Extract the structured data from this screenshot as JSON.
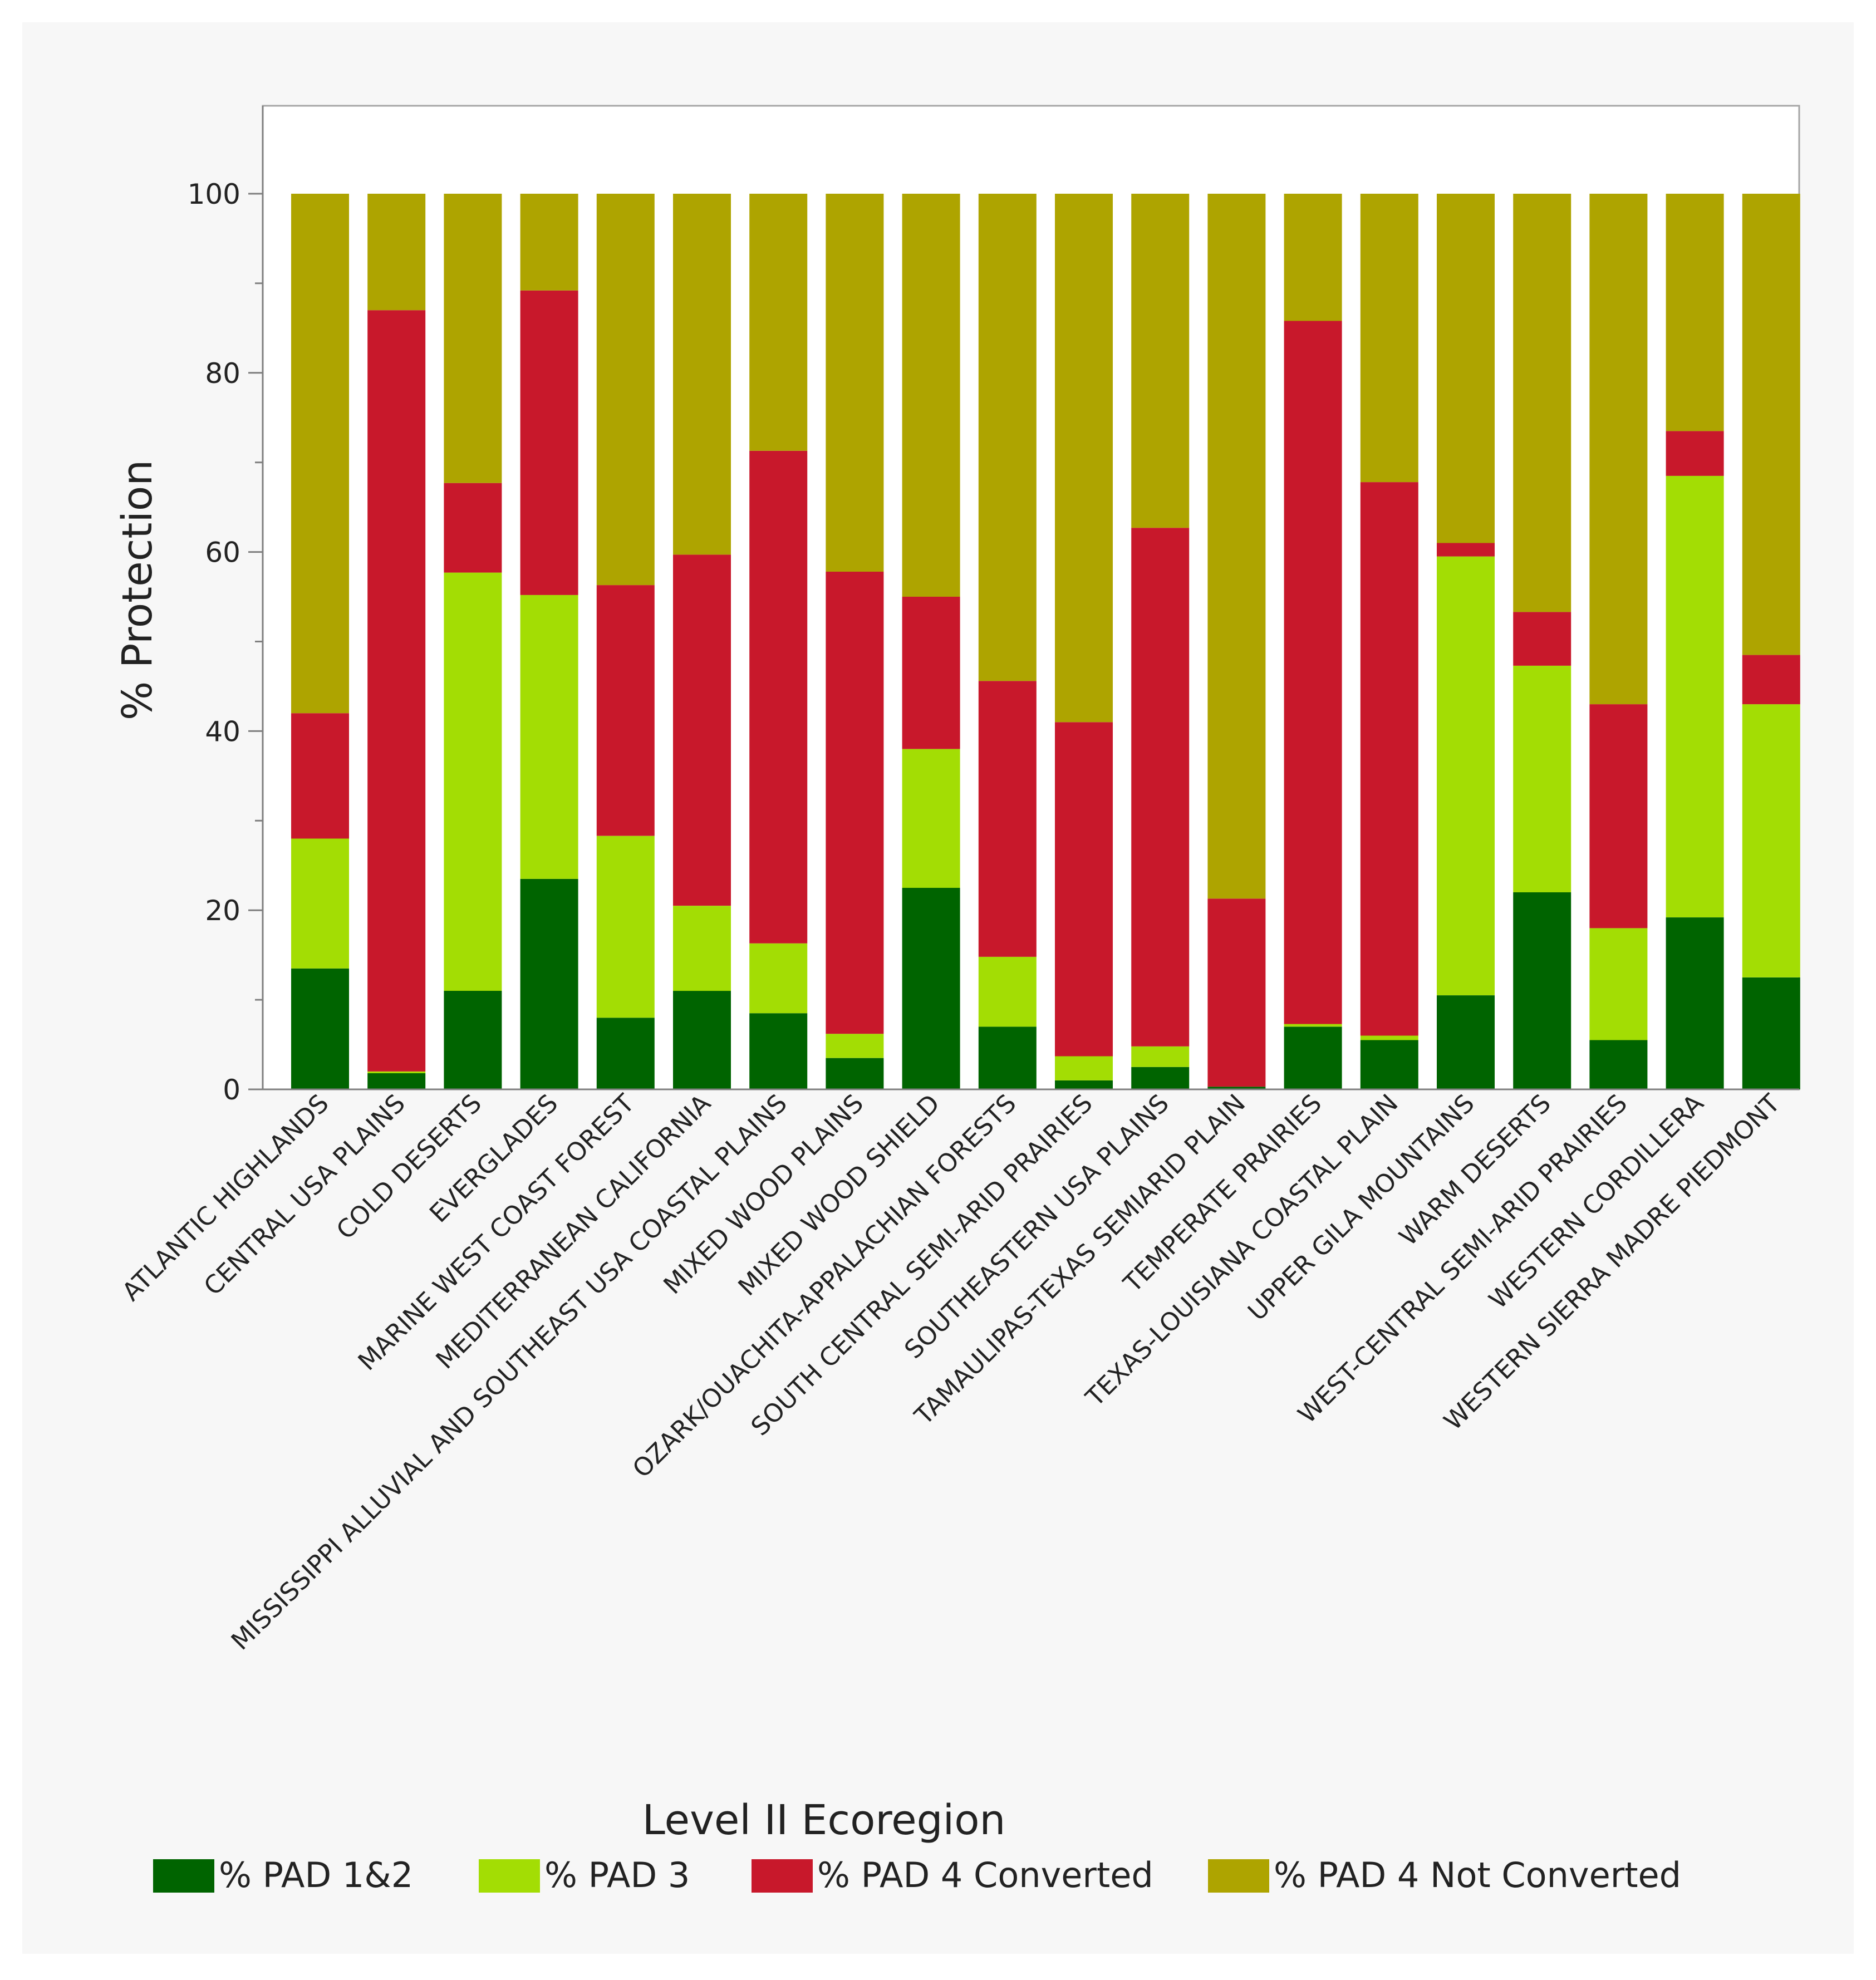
{
  "chart_data": {
    "type": "bar",
    "stacked": true,
    "title": "",
    "xlabel": "Level II Ecoregion",
    "ylabel": "% Protection",
    "ylim": [
      0,
      110
    ],
    "yticks": [
      0,
      20,
      40,
      60,
      80,
      100
    ],
    "grid": false,
    "legend_position": "bottom",
    "categories": [
      "ATLANTIC HIGHLANDS",
      "CENTRAL USA PLAINS",
      "COLD DESERTS",
      "EVERGLADES",
      "MARINE WEST COAST FOREST",
      "MEDITERRANEAN CALIFORNIA",
      "MISSISSIPPI ALLUVIAL AND SOUTHEAST USA COASTAL PLAINS",
      "MIXED WOOD PLAINS",
      "MIXED WOOD SHIELD",
      "OZARK/OUACHITA-APPALACHIAN FORESTS",
      "SOUTH CENTRAL SEMI-ARID PRAIRIES",
      "SOUTHEASTERN USA PLAINS",
      "TAMAULIPAS-TEXAS SEMIARID PLAIN",
      "TEMPERATE PRAIRIES",
      "TEXAS-LOUISIANA COASTAL PLAIN",
      "UPPER GILA MOUNTAINS",
      "WARM DESERTS",
      "WEST-CENTRAL SEMI-ARID PRAIRIES",
      "WESTERN CORDILLERA",
      "WESTERN SIERRA MADRE PIEDMONT"
    ],
    "series": [
      {
        "name": "% PAD 1&2",
        "color": "#006400",
        "values": [
          13.5,
          1.8,
          11,
          23.5,
          8,
          11,
          8.5,
          3.5,
          22.5,
          7,
          1,
          2.5,
          0.3,
          7,
          5.5,
          10.5,
          22,
          5.5,
          19.2,
          12.5
        ]
      },
      {
        "name": "% PAD 3",
        "color": "#a3dd04",
        "values": [
          14.5,
          0.2,
          46.7,
          31.7,
          20.3,
          9.5,
          7.8,
          2.7,
          15.5,
          7.8,
          2.7,
          2.3,
          0,
          0.3,
          0.5,
          49,
          25.3,
          12.5,
          49.3,
          30.5
        ]
      },
      {
        "name": "% PAD 4 Converted",
        "color": "#c8182b",
        "values": [
          14,
          85,
          10,
          34,
          28,
          39.2,
          55,
          51.6,
          17,
          30.8,
          37.3,
          57.9,
          21,
          78.5,
          61.8,
          1.5,
          6,
          25,
          5,
          5.5
        ]
      },
      {
        "name": "% PAD 4 Not Converted",
        "color": "#aea400",
        "values": [
          58,
          13,
          32.3,
          10.8,
          43.7,
          40.3,
          28.7,
          42.2,
          45,
          54.4,
          59,
          37.3,
          78.7,
          14.2,
          32.2,
          39,
          46.7,
          57,
          26.5,
          51.5
        ]
      }
    ]
  }
}
